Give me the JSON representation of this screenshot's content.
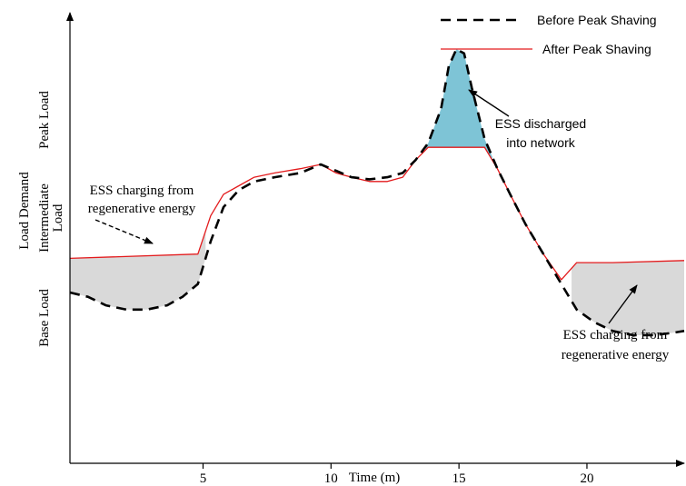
{
  "chart_data": {
    "type": "line",
    "xlabel": "Time (m)",
    "ylabel": "Load Demand",
    "xlim": [
      -0.2,
      23.8
    ],
    "ylim": [
      0,
      100
    ],
    "x_ticks": [
      "5",
      "10",
      "15",
      "20"
    ],
    "y_bands": [
      "Base Load",
      "Intermediate Load",
      "Peak Load"
    ],
    "legend_position": "top-right",
    "legend": [
      {
        "label": "Before Peak Shaving",
        "style": "dashed",
        "color": "#000000"
      },
      {
        "label": "After Peak Shaving",
        "style": "solid",
        "color": "#e31a1c"
      }
    ],
    "series": [
      {
        "name": "Before Peak Shaving",
        "x": [
          -0.2,
          0.5,
          1.2,
          2,
          2.8,
          3.6,
          4.2,
          4.8,
          5.3,
          5.8,
          6.4,
          7,
          7.8,
          8.8,
          9.6,
          10.2,
          10.8,
          11.5,
          12.2,
          12.8,
          13.3,
          13.8,
          14.3,
          14.6,
          14.9,
          15.2,
          15.5,
          16,
          16.5,
          17,
          17.6,
          18.3,
          19,
          19.6,
          20.3,
          21,
          21.8,
          22.6,
          23.3,
          23.8
        ],
        "y": [
          40,
          39,
          37,
          36,
          36,
          37,
          39,
          42,
          52,
          60,
          64,
          66,
          67,
          68,
          70,
          68.5,
          67,
          66.5,
          67,
          68,
          71,
          75,
          83,
          93,
          97,
          96,
          88,
          76,
          69,
          63,
          56,
          49,
          42,
          36,
          33,
          31,
          30,
          30,
          30.5,
          31
        ]
      },
      {
        "name": "After Peak Shaving",
        "x": [
          -0.2,
          4.8,
          5.3,
          5.8,
          6.4,
          7,
          7.8,
          8.8,
          9.6,
          10.2,
          10.8,
          11.5,
          12.2,
          12.8,
          13.3,
          13.8,
          15,
          16,
          16.5,
          17,
          17.6,
          18.3,
          19,
          19.6,
          21,
          23.8
        ],
        "y": [
          48,
          49,
          58,
          63,
          65,
          67,
          68,
          69,
          70,
          68,
          67,
          66,
          66,
          67,
          71,
          74,
          74,
          74,
          69,
          63,
          56,
          49,
          43,
          47,
          47,
          47.5
        ]
      }
    ],
    "annotations": [
      {
        "text": "ESS charging from regenerative energy",
        "x": 2.8,
        "y": 49
      },
      {
        "text": "ESS discharged into network",
        "x": 15.8,
        "y": 87
      },
      {
        "text": "ESS charging from regenerative energy",
        "x": 22,
        "y": 30
      }
    ]
  },
  "colors": {
    "axis": "#000000",
    "before": "#000000",
    "after": "#e31a1c",
    "charge_fill": "#d9d9d9",
    "discharge_fill": "#7ec4d6"
  },
  "text": {
    "ann1_line1": "ESS charging from",
    "ann1_line2": "regenerative energy",
    "ann2_line1": "ESS discharged",
    "ann2_line2": "into network",
    "ann3_line1": "ESS charging from",
    "ann3_line2": "regenerative energy",
    "band_base": "Base Load",
    "band_inter1": "Intermediate",
    "band_inter2": "Load",
    "band_peak": "Peak Load"
  }
}
